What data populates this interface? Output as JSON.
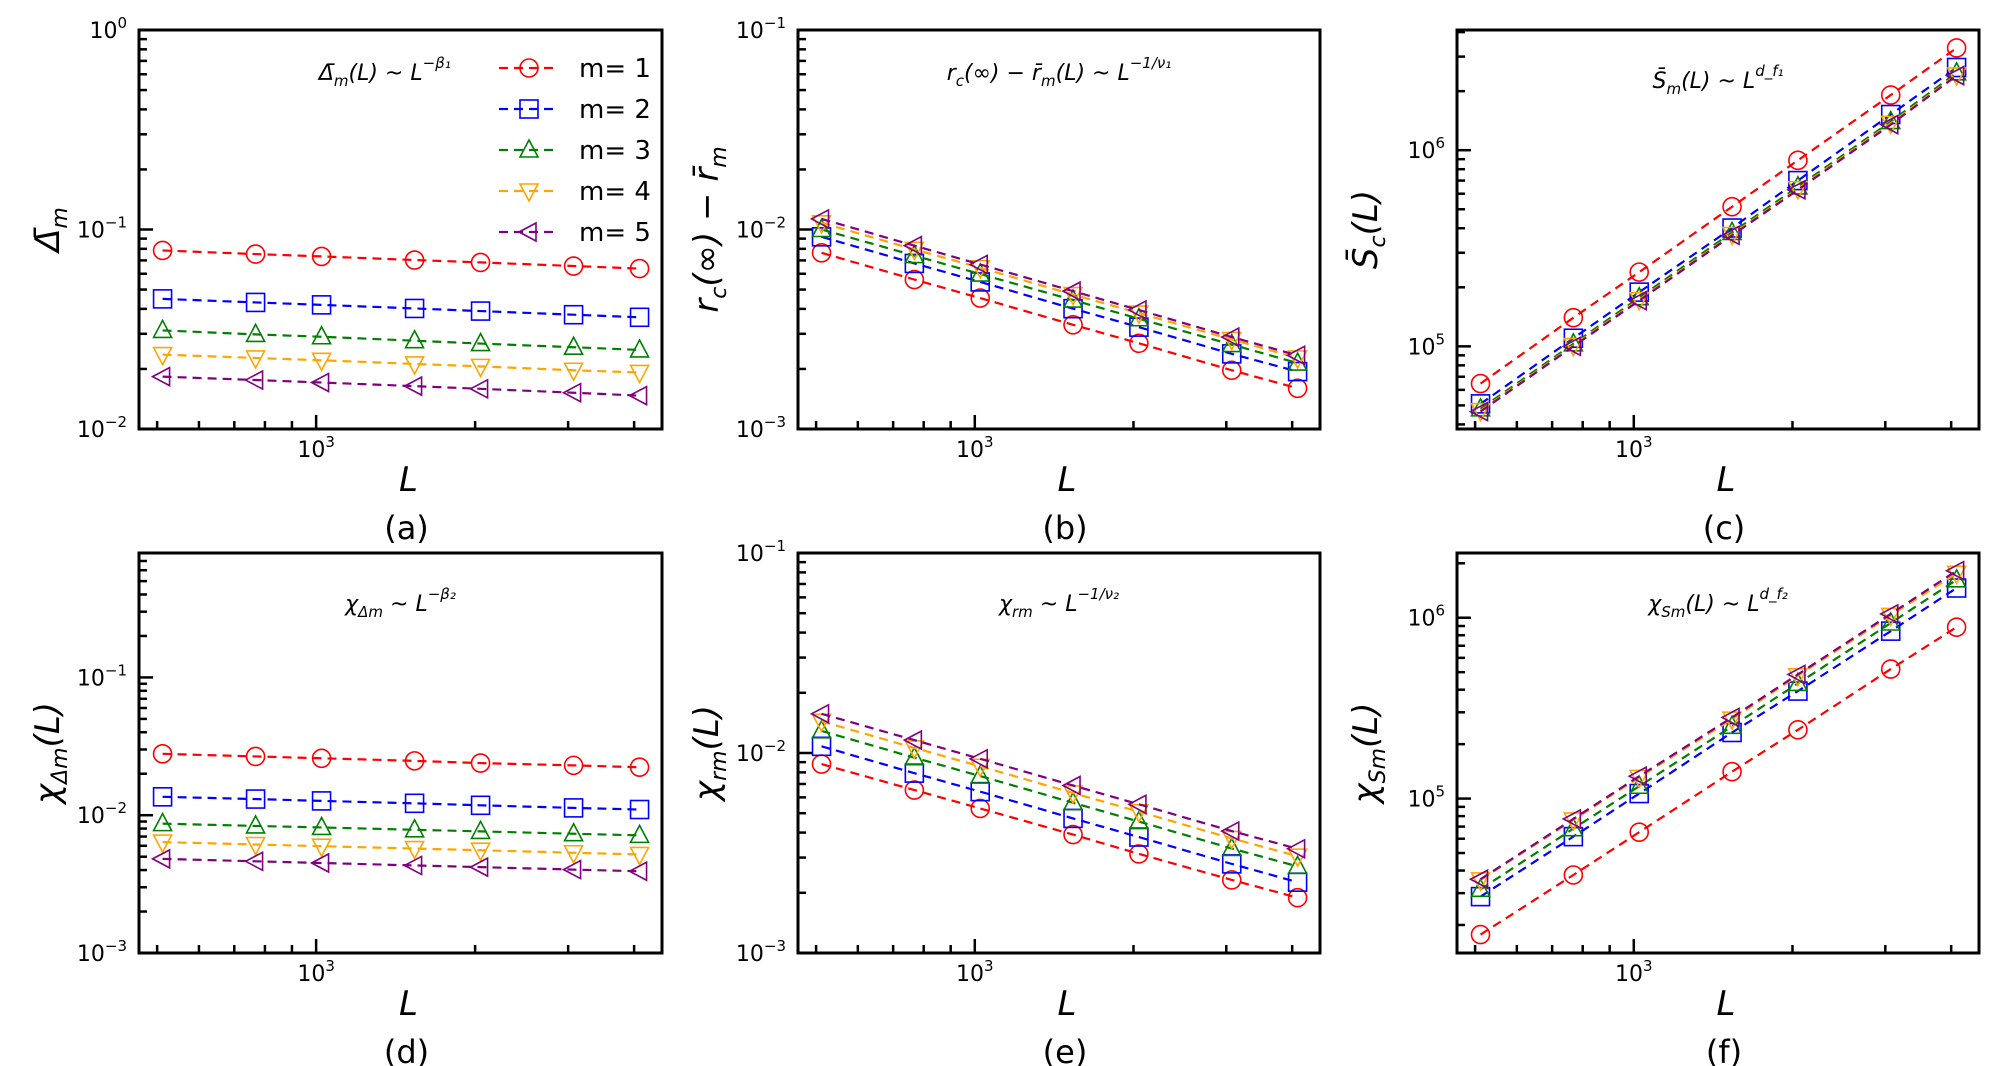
{
  "figure": {
    "x_values": [
      512,
      768,
      1024,
      1536,
      2048,
      3072,
      4096
    ],
    "series_names": [
      "m= 1",
      "m= 2",
      "m= 3",
      "m= 4",
      "m= 5"
    ],
    "series_colors": [
      "#ff0000",
      "#0000ff",
      "#008000",
      "#ffa500",
      "#800080"
    ],
    "series_markers": [
      "circle",
      "square",
      "triangle-up",
      "triangle-down",
      "triangle-left"
    ]
  },
  "chart_data": [
    {
      "id": "a",
      "type": "line",
      "panel_label": "(a)",
      "title": "",
      "annotation": "Δ̄m(L) ~ L^{−β1}",
      "annotation_parts": {
        "base": "Δ̄",
        "sub": "m",
        "mid": "(L) ~ L",
        "sup": "−β₁"
      },
      "xlabel": "L",
      "ylabel": "Δ̄m",
      "ylabel_parts": {
        "base": "Δ̄",
        "sub": "m",
        "rest": ""
      },
      "xscale": "log",
      "yscale": "log",
      "xlim": [
        462,
        4517
      ],
      "ylim": [
        0.01,
        1
      ],
      "x_tick_labels": [
        {
          "value": 1000,
          "base": "10",
          "exp": "3"
        }
      ],
      "y_tick_labels": [
        {
          "value": 1,
          "base": "10",
          "exp": "0"
        },
        {
          "value": 0.1,
          "base": "10",
          "exp": "−1"
        },
        {
          "value": 0.01,
          "base": "10",
          "exp": "−2"
        }
      ],
      "legend": {
        "position": "top-right",
        "entries": [
          "m= 1",
          "m= 2",
          "m= 3",
          "m= 4",
          "m= 5"
        ]
      },
      "x": [
        512,
        768,
        1024,
        1536,
        2048,
        3072,
        4096
      ],
      "series": [
        {
          "name": "m= 1",
          "values": [
            0.0785,
            0.0753,
            0.0733,
            0.0703,
            0.0684,
            0.0656,
            0.0637
          ]
        },
        {
          "name": "m= 2",
          "values": [
            0.0449,
            0.0431,
            0.0419,
            0.0402,
            0.039,
            0.0374,
            0.0363
          ]
        },
        {
          "name": "m= 3",
          "values": [
            0.0312,
            0.0298,
            0.029,
            0.0277,
            0.0268,
            0.0257,
            0.0249
          ]
        },
        {
          "name": "m= 4",
          "values": [
            0.0236,
            0.0227,
            0.0221,
            0.0212,
            0.0206,
            0.0197,
            0.0192
          ]
        },
        {
          "name": "m= 5",
          "values": [
            0.0183,
            0.0176,
            0.0171,
            0.0164,
            0.0159,
            0.0152,
            0.0147
          ]
        }
      ]
    },
    {
      "id": "b",
      "type": "line",
      "panel_label": "(b)",
      "title": "",
      "annotation": "rc(∞) − r̄m(L) ~ L^{−1/ν1}",
      "annotation_parts": {
        "base": "r",
        "sub": "c",
        "mid": "(∞) − r̄",
        "sub2": "m",
        "mid2": "(L) ~ L",
        "sup": "−1/ν₁"
      },
      "xlabel": "L",
      "ylabel": "rc(∞) − r̄m",
      "ylabel_parts": {
        "base": "r",
        "sub": "c",
        "rest": "(∞) − r̄",
        "sub2": "m"
      },
      "xscale": "log",
      "yscale": "log",
      "xlim": [
        462,
        4517
      ],
      "ylim": [
        0.001,
        0.1
      ],
      "x_tick_labels": [
        {
          "value": 1000,
          "base": "10",
          "exp": "3"
        }
      ],
      "y_tick_labels": [
        {
          "value": 0.1,
          "base": "10",
          "exp": "−1"
        },
        {
          "value": 0.01,
          "base": "10",
          "exp": "−2"
        },
        {
          "value": 0.001,
          "base": "10",
          "exp": "−3"
        }
      ],
      "x": [
        512,
        768,
        1024,
        1536,
        2048,
        3072,
        4096
      ],
      "series": [
        {
          "name": "m= 1",
          "values": [
            0.00764,
            0.00561,
            0.00453,
            0.00333,
            0.00269,
            0.00197,
            0.0016
          ]
        },
        {
          "name": "m= 2",
          "values": [
            0.00919,
            0.00676,
            0.00546,
            0.00401,
            0.00324,
            0.00238,
            0.00194
          ]
        },
        {
          "name": "m= 3",
          "values": [
            0.01,
            0.0074,
            0.00598,
            0.00443,
            0.00357,
            0.00265,
            0.00214
          ]
        },
        {
          "name": "m= 4",
          "values": [
            0.0108,
            0.00795,
            0.00643,
            0.00472,
            0.00381,
            0.00281,
            0.00227
          ]
        },
        {
          "name": "m= 5",
          "values": [
            0.0113,
            0.0083,
            0.00668,
            0.00491,
            0.00395,
            0.00289,
            0.00234
          ]
        }
      ]
    },
    {
      "id": "c",
      "type": "line",
      "panel_label": "(c)",
      "title": "",
      "annotation": "S̄m(L) ~ L^{df1}",
      "annotation_parts": {
        "base": "S̄",
        "sub": "m",
        "mid": "(L) ~ L",
        "sup": "d_f₁"
      },
      "xlabel": "L",
      "ylabel": "S̄c(L)",
      "ylabel_parts": {
        "base": "S̄",
        "sub": "c",
        "rest": "(L)"
      },
      "xscale": "log",
      "yscale": "log",
      "xlim": [
        462,
        4517
      ],
      "ylim": [
        37900,
        4100000
      ],
      "x_tick_labels": [
        {
          "value": 1000,
          "base": "10",
          "exp": "3"
        }
      ],
      "y_tick_labels": [
        {
          "value": 1000000,
          "base": "10",
          "exp": "6"
        },
        {
          "value": 100000,
          "base": "10",
          "exp": "5"
        }
      ],
      "x": [
        512,
        768,
        1024,
        1536,
        2048,
        3072,
        4096
      ],
      "series": [
        {
          "name": "m= 1",
          "values": [
            64600,
            140000,
            239000,
            515000,
            888000,
            1910000,
            3320000
          ]
        },
        {
          "name": "m= 2",
          "values": [
            50900,
            110000,
            189000,
            401000,
            700000,
            1520000,
            2640000
          ]
        },
        {
          "name": "m= 3",
          "values": [
            48000,
            103000,
            177000,
            381000,
            650000,
            1400000,
            2480000
          ]
        },
        {
          "name": "m= 4",
          "values": [
            47000,
            101000,
            173000,
            372000,
            636000,
            1370000,
            2420000
          ]
        },
        {
          "name": "m= 5",
          "values": [
            46500,
            100000,
            171000,
            368000,
            628000,
            1350000,
            2400000
          ]
        }
      ]
    },
    {
      "id": "d",
      "type": "line",
      "panel_label": "(d)",
      "title": "",
      "annotation": "χΔm ~ L^{−β2}",
      "annotation_parts": {
        "base": "χ",
        "sub": "Δm",
        "mid": " ~ L",
        "sup": "−β₂"
      },
      "xlabel": "L",
      "ylabel": "χΔm(L)",
      "ylabel_parts": {
        "base": "χ",
        "sub": "Δm",
        "rest": "(L)"
      },
      "xscale": "log",
      "yscale": "log",
      "xlim": [
        462,
        4517
      ],
      "ylim": [
        0.001,
        0.8
      ],
      "x_tick_labels": [
        {
          "value": 1000,
          "base": "10",
          "exp": "3"
        }
      ],
      "y_tick_labels": [
        {
          "value": 0.1,
          "base": "10",
          "exp": "−1"
        },
        {
          "value": 0.01,
          "base": "10",
          "exp": "−2"
        },
        {
          "value": 0.001,
          "base": "10",
          "exp": "−3"
        }
      ],
      "x": [
        512,
        768,
        1024,
        1536,
        2048,
        3072,
        4096
      ],
      "series": [
        {
          "name": "m= 1",
          "values": [
            0.0279,
            0.0267,
            0.0259,
            0.0248,
            0.0239,
            0.023,
            0.0223
          ]
        },
        {
          "name": "m= 2",
          "values": [
            0.0136,
            0.0131,
            0.0127,
            0.0122,
            0.0118,
            0.0113,
            0.011
          ]
        },
        {
          "name": "m= 3",
          "values": [
            0.00869,
            0.00836,
            0.00815,
            0.00784,
            0.00763,
            0.00734,
            0.00714
          ]
        },
        {
          "name": "m= 4",
          "values": [
            0.00638,
            0.00613,
            0.00596,
            0.00573,
            0.00557,
            0.00534,
            0.00519
          ]
        },
        {
          "name": "m= 5",
          "values": [
            0.00482,
            0.00463,
            0.0045,
            0.00432,
            0.0042,
            0.00403,
            0.00392
          ]
        }
      ]
    },
    {
      "id": "e",
      "type": "line",
      "panel_label": "(e)",
      "title": "",
      "annotation": "χrm ~ L^{−1/ν2}",
      "annotation_parts": {
        "base": "χ",
        "sub": "rm",
        "mid": " ~ L",
        "sup": "−1/ν₂"
      },
      "xlabel": "L",
      "ylabel": "χrm(L)",
      "ylabel_parts": {
        "base": "χ",
        "sub": "rm",
        "rest": "(L)"
      },
      "xscale": "log",
      "yscale": "log",
      "xlim": [
        462,
        4517
      ],
      "ylim": [
        0.001,
        0.1
      ],
      "x_tick_labels": [
        {
          "value": 1000,
          "base": "10",
          "exp": "3"
        }
      ],
      "y_tick_labels": [
        {
          "value": 0.1,
          "base": "10",
          "exp": "−1"
        },
        {
          "value": 0.01,
          "base": "10",
          "exp": "−2"
        },
        {
          "value": 0.001,
          "base": "10",
          "exp": "−3"
        }
      ],
      "x": [
        512,
        768,
        1024,
        1536,
        2048,
        3072,
        4096
      ],
      "series": [
        {
          "name": "m= 1",
          "values": [
            0.0088,
            0.00653,
            0.00528,
            0.00391,
            0.00313,
            0.00232,
            0.00189
          ]
        },
        {
          "name": "m= 2",
          "values": [
            0.0108,
            0.00793,
            0.00641,
            0.00471,
            0.0038,
            0.00279,
            0.00226
          ]
        },
        {
          "name": "m= 3",
          "values": [
            0.0129,
            0.00948,
            0.00767,
            0.00564,
            0.00454,
            0.00333,
            0.00271
          ]
        },
        {
          "name": "m= 4",
          "values": [
            0.0144,
            0.0106,
            0.00858,
            0.00631,
            0.00509,
            0.00374,
            0.00305
          ]
        },
        {
          "name": "m= 5",
          "values": [
            0.0157,
            0.0116,
            0.00935,
            0.00688,
            0.00554,
            0.00407,
            0.00332
          ]
        }
      ]
    },
    {
      "id": "f",
      "type": "line",
      "panel_label": "(f)",
      "title": "",
      "annotation": "χSm(L) ~ L^{df2}",
      "annotation_parts": {
        "base": "χ",
        "sub": "Sm",
        "mid": "(L) ~ L",
        "sup": "d_f₂"
      },
      "xlabel": "L",
      "ylabel": "χSm(L)",
      "ylabel_parts": {
        "base": "χ",
        "sub": "Sm",
        "rest": "(L)"
      },
      "xscale": "log",
      "yscale": "log",
      "xlim": [
        462,
        4517
      ],
      "ylim": [
        14000,
        2280000
      ],
      "x_tick_labels": [
        {
          "value": 1000,
          "base": "10",
          "exp": "3"
        }
      ],
      "y_tick_labels": [
        {
          "value": 1000000,
          "base": "10",
          "exp": "6"
        },
        {
          "value": 100000,
          "base": "10",
          "exp": "5"
        }
      ],
      "x": [
        512,
        768,
        1024,
        1536,
        2048,
        3072,
        4096
      ],
      "series": [
        {
          "name": "m= 1",
          "values": [
            17700,
            37800,
            65200,
            140900,
            240000,
            520000,
            887000
          ]
        },
        {
          "name": "m= 2",
          "values": [
            28700,
            61600,
            106600,
            232000,
            393000,
            843000,
            1460000
          ]
        },
        {
          "name": "m= 3",
          "values": [
            31500,
            68200,
            117000,
            251000,
            433000,
            935000,
            1620000
          ]
        },
        {
          "name": "m= 4",
          "values": [
            35500,
            76200,
            131000,
            275000,
            478000,
            1030000,
            1760000
          ]
        },
        {
          "name": "m= 5",
          "values": [
            35800,
            77200,
            133000,
            281000,
            486000,
            1050000,
            1820000
          ]
        }
      ]
    }
  ]
}
